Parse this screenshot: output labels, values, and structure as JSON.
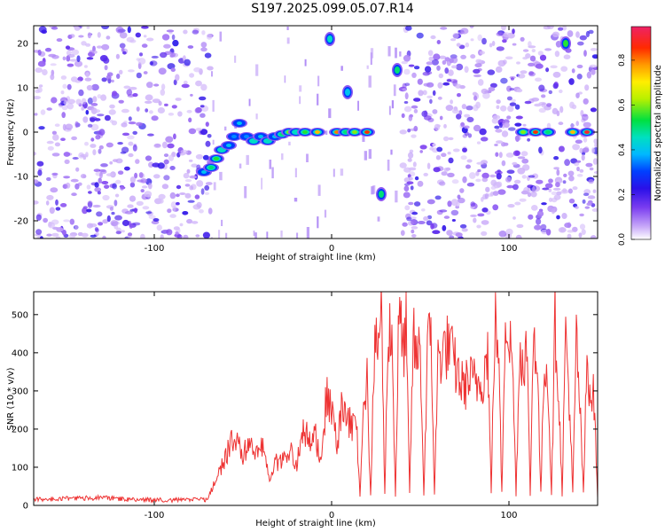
{
  "title": "S197.2025.099.05.07.R14",
  "chart_data": [
    {
      "type": "heatmap",
      "xlabel": "Height of straight line (km)",
      "ylabel": "Frequency (Hz)",
      "xlim": [
        -168,
        150
      ],
      "ylim": [
        -24,
        24
      ],
      "xticks": [
        -100,
        0,
        100
      ],
      "yticks": [
        -20,
        -10,
        0,
        10,
        20
      ],
      "colorbar": {
        "label": "Normalized spectral amplitude",
        "range": [
          0.0,
          0.95
        ],
        "ticks": [
          "0.0",
          "0.2",
          "0.4",
          "0.6",
          "0.8"
        ],
        "colors": [
          "#ffffff",
          "#9b6df0",
          "#3c10e8",
          "#0033ff",
          "#00b0ff",
          "#00e5c8",
          "#00e040",
          "#b0f000",
          "#ffee00",
          "#ff9900",
          "#ff2000",
          "#ee2060"
        ]
      },
      "noise_regions": [
        [
          -168,
          -68
        ],
        [
          40,
          150
        ]
      ],
      "sparse_regions": [
        [
          -68,
          40
        ]
      ],
      "signal_track": [
        {
          "x": -72,
          "y": -9,
          "a": 0.4
        },
        {
          "x": -68,
          "y": -8,
          "a": 0.5
        },
        {
          "x": -65,
          "y": -6,
          "a": 0.55
        },
        {
          "x": -62,
          "y": -4,
          "a": 0.45
        },
        {
          "x": -58,
          "y": -3,
          "a": 0.4
        },
        {
          "x": -55,
          "y": -1,
          "a": 0.35
        },
        {
          "x": -52,
          "y": 2,
          "a": 0.4
        },
        {
          "x": -48,
          "y": -1,
          "a": 0.35
        },
        {
          "x": -44,
          "y": -2,
          "a": 0.45
        },
        {
          "x": -40,
          "y": -1,
          "a": 0.4
        },
        {
          "x": -36,
          "y": -2,
          "a": 0.45
        },
        {
          "x": -32,
          "y": -1,
          "a": 0.4
        },
        {
          "x": -28,
          "y": -0.5,
          "a": 0.5
        },
        {
          "x": -24,
          "y": 0,
          "a": 0.6
        },
        {
          "x": -20,
          "y": 0,
          "a": 0.45
        },
        {
          "x": -15,
          "y": 0,
          "a": 0.55
        },
        {
          "x": -8,
          "y": 0,
          "a": 0.75
        },
        {
          "x": 3,
          "y": 0,
          "a": 0.8
        },
        {
          "x": 8,
          "y": 0,
          "a": 0.5
        },
        {
          "x": 13,
          "y": 0,
          "a": 0.6
        },
        {
          "x": 20,
          "y": 0,
          "a": 0.85
        },
        {
          "x": 108,
          "y": 0,
          "a": 0.6
        },
        {
          "x": 115,
          "y": 0,
          "a": 0.85
        },
        {
          "x": 122,
          "y": 0,
          "a": 0.5
        },
        {
          "x": 136,
          "y": 0,
          "a": 0.75
        },
        {
          "x": 144,
          "y": 0,
          "a": 0.9
        }
      ],
      "isolated_blobs": [
        {
          "x": -1,
          "y": 21,
          "a": 0.45
        },
        {
          "x": 9,
          "y": 9,
          "a": 0.4
        },
        {
          "x": 28,
          "y": -14,
          "a": 0.5
        },
        {
          "x": 37,
          "y": 14,
          "a": 0.5
        },
        {
          "x": 132,
          "y": 20,
          "a": 0.55
        }
      ]
    },
    {
      "type": "line",
      "xlabel": "Height of straight line (km)",
      "ylabel": "SNR (10 * v/v)",
      "xlim": [
        -168,
        150
      ],
      "ylim": [
        0,
        560
      ],
      "xticks": [
        -100,
        0,
        100
      ],
      "yticks": [
        0,
        100,
        200,
        300,
        400,
        500
      ],
      "line_color": "#ee3333",
      "series": [
        {
          "name": "",
          "x": [
            -168,
            -150,
            -130,
            -110,
            -90,
            -70,
            -64,
            -58,
            -54,
            -50,
            -46,
            -42,
            -38,
            -35,
            -32,
            -28,
            -24,
            -20,
            -16,
            -12,
            -9,
            -6,
            -3,
            0,
            3,
            6,
            9,
            12,
            14,
            16,
            18,
            20,
            22,
            24,
            26,
            28,
            30,
            32,
            34,
            36,
            38,
            40,
            42,
            44,
            46,
            48,
            50,
            52,
            54,
            56,
            58,
            60,
            62,
            66,
            70,
            74,
            78,
            82,
            86,
            88,
            90,
            92,
            94,
            96,
            98,
            100,
            102,
            104,
            106,
            108,
            110,
            112,
            114,
            116,
            118,
            120,
            122,
            124,
            126,
            128,
            130,
            132,
            134,
            136,
            138,
            140,
            142,
            144,
            146,
            148,
            150
          ],
          "y": [
            15,
            18,
            20,
            15,
            14,
            15,
            80,
            150,
            180,
            120,
            190,
            130,
            160,
            70,
            110,
            120,
            150,
            100,
            200,
            160,
            180,
            120,
            280,
            250,
            150,
            260,
            230,
            200,
            220,
            25,
            300,
            320,
            25,
            380,
            420,
            520,
            30,
            480,
            440,
            25,
            520,
            400,
            460,
            30,
            440,
            380,
            420,
            25,
            400,
            460,
            30,
            380,
            400,
            420,
            360,
            310,
            330,
            320,
            340,
            420,
            30,
            480,
            420,
            30,
            520,
            440,
            380,
            30,
            400,
            380,
            420,
            30,
            480,
            360,
            30,
            400,
            320,
            30,
            480,
            300,
            30,
            460,
            280,
            30,
            440,
            260,
            30,
            380,
            300,
            280,
            20
          ]
        }
      ]
    }
  ]
}
